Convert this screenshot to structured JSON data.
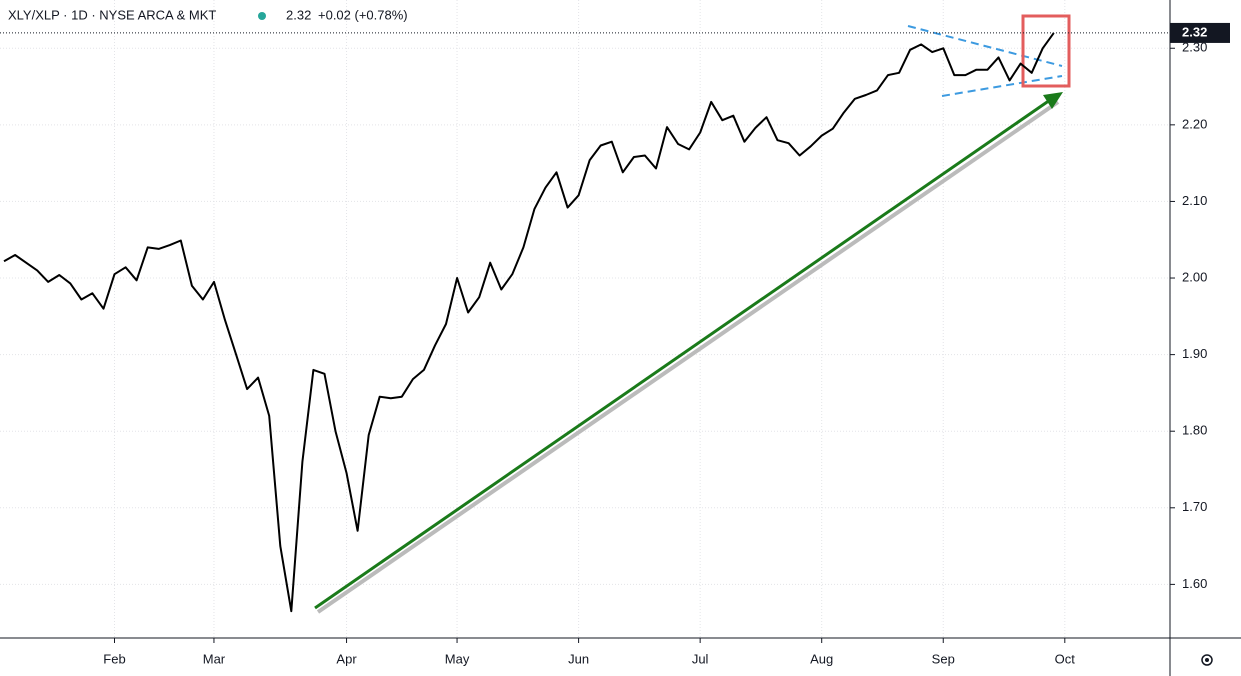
{
  "chart_data": {
    "type": "line",
    "title": "XLY/XLP · 1D · NYSE ARCA & MKT",
    "last_price": 2.32,
    "change": "+0.02 (+0.78%)",
    "color": "#000000",
    "categories": [
      null,
      null,
      null,
      null,
      null,
      null,
      null,
      null,
      null,
      null,
      "Feb",
      null,
      null,
      null,
      null,
      null,
      null,
      null,
      null,
      "Mar",
      null,
      null,
      null,
      null,
      null,
      null,
      null,
      null,
      null,
      null,
      null,
      "Apr",
      null,
      null,
      null,
      null,
      null,
      null,
      null,
      null,
      null,
      "May",
      null,
      null,
      null,
      null,
      null,
      null,
      null,
      null,
      null,
      null,
      "Jun",
      null,
      null,
      null,
      null,
      null,
      null,
      null,
      null,
      null,
      null,
      "Jul",
      null,
      null,
      null,
      null,
      null,
      null,
      null,
      null,
      null,
      null,
      "Aug",
      null,
      null,
      null,
      null,
      null,
      null,
      null,
      null,
      null,
      null,
      "Sep",
      null,
      null,
      null,
      null,
      null,
      null,
      null,
      null,
      null,
      null,
      "Oct"
    ],
    "values": [
      2.022,
      2.03,
      2.02,
      2.01,
      1.995,
      2.004,
      1.993,
      1.972,
      1.98,
      1.96,
      2.005,
      2.014,
      1.997,
      2.04,
      2.038,
      2.043,
      2.049,
      1.99,
      1.972,
      1.995,
      1.945,
      1.9,
      1.855,
      1.87,
      1.82,
      1.65,
      1.565,
      1.76,
      1.88,
      1.875,
      1.8,
      1.745,
      1.67,
      1.795,
      1.845,
      1.843,
      1.845,
      1.868,
      1.88,
      1.912,
      1.94,
      2.0,
      1.955,
      1.975,
      2.02,
      1.985,
      2.005,
      2.04,
      2.09,
      2.118,
      2.138,
      2.092,
      2.108,
      2.154,
      2.173,
      2.178,
      2.138,
      2.158,
      2.16,
      2.143,
      2.197,
      2.175,
      2.168,
      2.19,
      2.23,
      2.206,
      2.212,
      2.178,
      2.196,
      2.21,
      2.18,
      2.176,
      2.16,
      2.172,
      2.186,
      2.195,
      2.216,
      2.234,
      2.239,
      2.245,
      2.265,
      2.268,
      2.298,
      2.305,
      2.295,
      2.3,
      2.265,
      2.265,
      2.272,
      2.272,
      2.288,
      2.258,
      2.28,
      2.268,
      2.3,
      2.32,
      null
    ],
    "ylim": [
      1.53,
      2.363
    ],
    "yticks": [
      {
        "value": 1.6,
        "label": "1.60"
      },
      {
        "value": 1.7,
        "label": "1.70"
      },
      {
        "value": 1.8,
        "label": "1.80"
      },
      {
        "value": 1.9,
        "label": "1.90"
      },
      {
        "value": 2.0,
        "label": "2.00"
      },
      {
        "value": 2.1,
        "label": "2.10"
      },
      {
        "value": 2.2,
        "label": "2.20"
      },
      {
        "value": 2.3,
        "label": "2.30"
      }
    ],
    "grid": true
  }
}
